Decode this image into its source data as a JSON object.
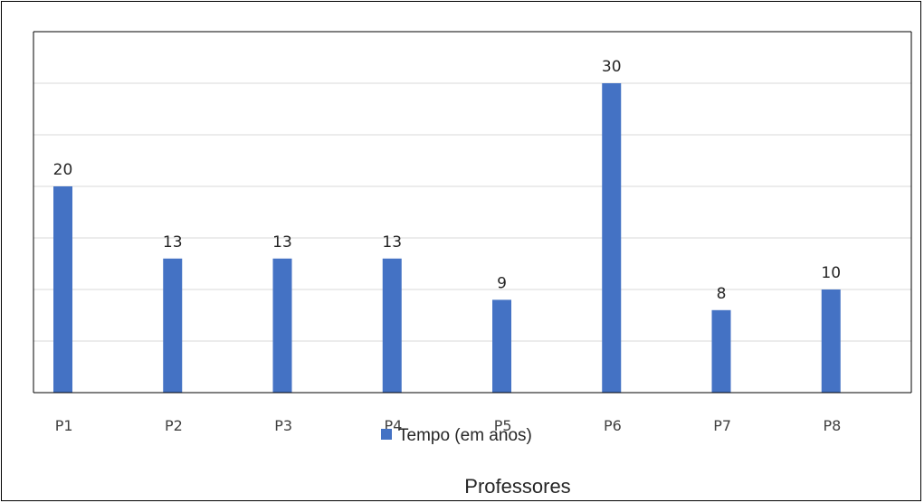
{
  "chart_data": {
    "type": "bar",
    "title": "",
    "categories": [
      "P1",
      "P2",
      "P3",
      "P4",
      "P5",
      "P6",
      "P7",
      "P8"
    ],
    "series": [
      {
        "name": "Tempo (em anos)",
        "values": [
          20,
          13,
          13,
          13,
          9,
          30,
          8,
          10
        ],
        "color": "#4472C4"
      }
    ],
    "xlabel": "Professores",
    "ylabel": "",
    "ylim": [
      0,
      30
    ],
    "grid": true,
    "data_labels": true,
    "legend_placement": "bottom"
  }
}
